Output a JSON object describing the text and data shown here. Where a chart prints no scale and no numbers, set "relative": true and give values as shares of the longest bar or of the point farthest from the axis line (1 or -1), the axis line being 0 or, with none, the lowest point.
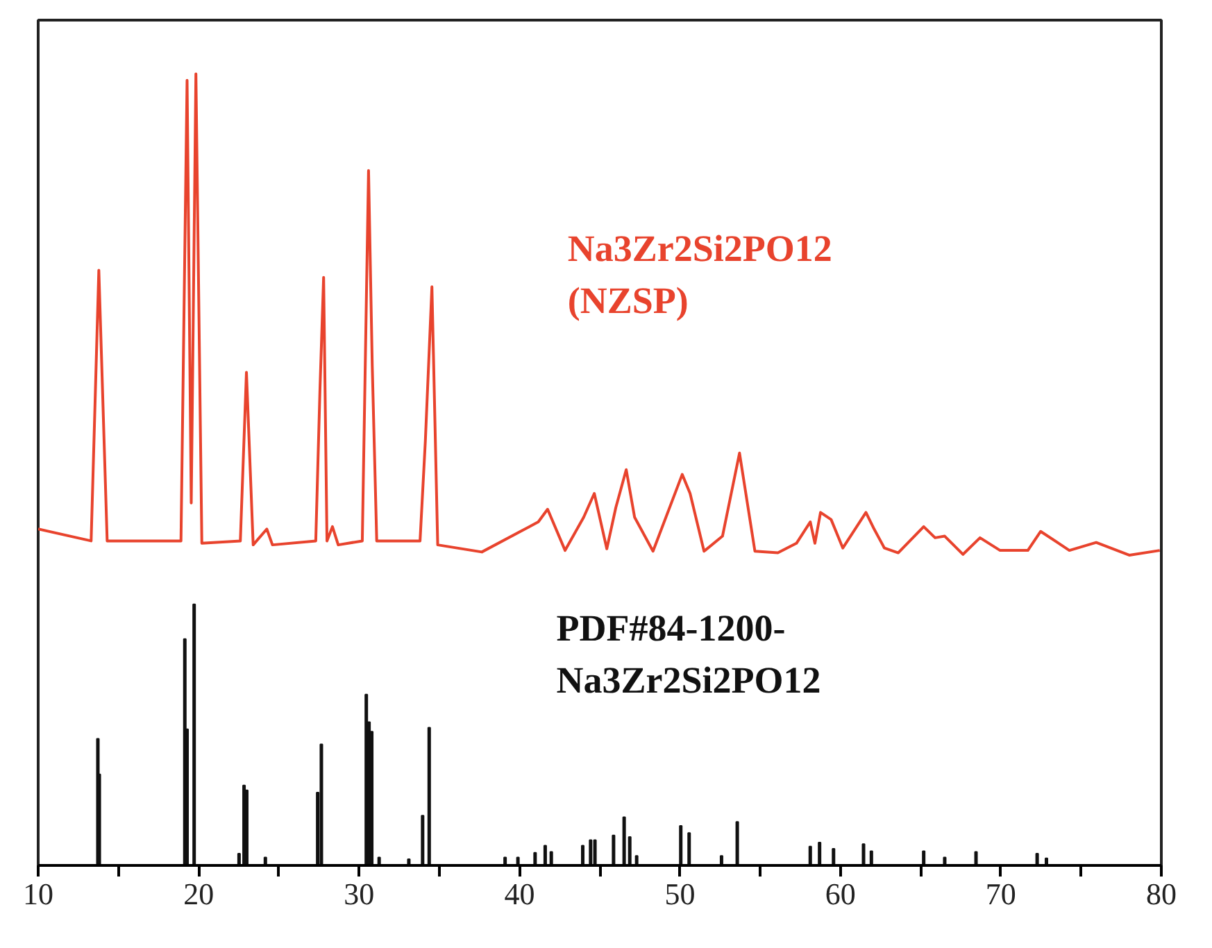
{
  "chart_data": {
    "type": "line",
    "relative": true,
    "xlim": [
      10,
      80
    ],
    "xticks": [
      10,
      {
        "value": 15,
        "label": null
      },
      20,
      {
        "value": 25,
        "label": null
      },
      30,
      {
        "value": 35,
        "label": null
      },
      40,
      {
        "value": 45,
        "label": null
      },
      50,
      {
        "value": 55,
        "label": null
      },
      60,
      {
        "value": 65,
        "label": null
      },
      70,
      {
        "value": 75,
        "label": null
      },
      80
    ],
    "grid": false,
    "tick_labels": "x",
    "series": [
      {
        "name": "Na3Zr2Si2PO12\n(NZSP)",
        "color": "#e8432d",
        "x": [
          10,
          13.3,
          13.78,
          14.3,
          18.9,
          19.28,
          19.54,
          19.83,
          20.2,
          22.6,
          22.98,
          23.4,
          24.25,
          24.6,
          27.3,
          27.56,
          27.79,
          28.0,
          28.34,
          28.7,
          30.2,
          30.59,
          30.82,
          31.1,
          33.8,
          34.13,
          34.54,
          34.9,
          37.65,
          41.17,
          41.75,
          42.84,
          44.0,
          44.66,
          45.44,
          46.0,
          46.65,
          47.17,
          48.32,
          50.14,
          50.63,
          51.5,
          52.65,
          53.71,
          54.67,
          56.1,
          57.26,
          58.12,
          58.41,
          58.76,
          59.42,
          60.15,
          61.59,
          62.1,
          62.74,
          63.6,
          65.19,
          65.9,
          66.5,
          67.64,
          68.7,
          69.95,
          71.68,
          72.48,
          74.27,
          75.94,
          78.0,
          79.9
        ],
        "values": [
          0.425,
          0.41,
          0.752,
          0.41,
          0.41,
          0.992,
          0.458,
          1.0,
          0.407,
          0.41,
          0.623,
          0.405,
          0.425,
          0.405,
          0.41,
          0.6,
          0.743,
          0.41,
          0.428,
          0.405,
          0.41,
          0.878,
          0.632,
          0.41,
          0.41,
          0.536,
          0.731,
          0.405,
          0.396,
          0.434,
          0.45,
          0.398,
          0.44,
          0.47,
          0.4,
          0.452,
          0.5,
          0.44,
          0.397,
          0.494,
          0.47,
          0.397,
          0.416,
          0.521,
          0.397,
          0.395,
          0.407,
          0.434,
          0.407,
          0.446,
          0.437,
          0.401,
          0.446,
          0.425,
          0.401,
          0.395,
          0.428,
          0.414,
          0.416,
          0.393,
          0.414,
          0.398,
          0.398,
          0.422,
          0.398,
          0.408,
          0.392,
          0.398
        ]
      },
      {
        "name": "PDF#84-1200-\nNa3Zr2Si2PO12",
        "type": "bar",
        "color": "#111111",
        "x": [
          13.72,
          13.81,
          19.14,
          19.28,
          19.72,
          22.52,
          22.83,
          23.0,
          24.16,
          27.42,
          27.65,
          30.45,
          30.62,
          30.79,
          31.25,
          33.1,
          33.96,
          34.37,
          39.1,
          39.9,
          40.97,
          41.6,
          41.98,
          43.94,
          44.43,
          44.7,
          45.86,
          46.52,
          46.87,
          47.3,
          50.05,
          50.57,
          52.59,
          53.57,
          58.12,
          58.7,
          59.57,
          61.44,
          61.93,
          65.19,
          66.5,
          68.45,
          72.26,
          72.84
        ],
        "values": [
          0.16,
          0.115,
          0.286,
          0.172,
          0.33,
          0.015,
          0.101,
          0.095,
          0.01,
          0.092,
          0.153,
          0.216,
          0.181,
          0.169,
          0.01,
          0.008,
          0.063,
          0.174,
          0.01,
          0.01,
          0.016,
          0.025,
          0.017,
          0.025,
          0.032,
          0.032,
          0.038,
          0.061,
          0.036,
          0.012,
          0.05,
          0.041,
          0.012,
          0.055,
          0.024,
          0.029,
          0.021,
          0.027,
          0.018,
          0.018,
          0.01,
          0.017,
          0.015,
          0.009
        ]
      }
    ]
  }
}
